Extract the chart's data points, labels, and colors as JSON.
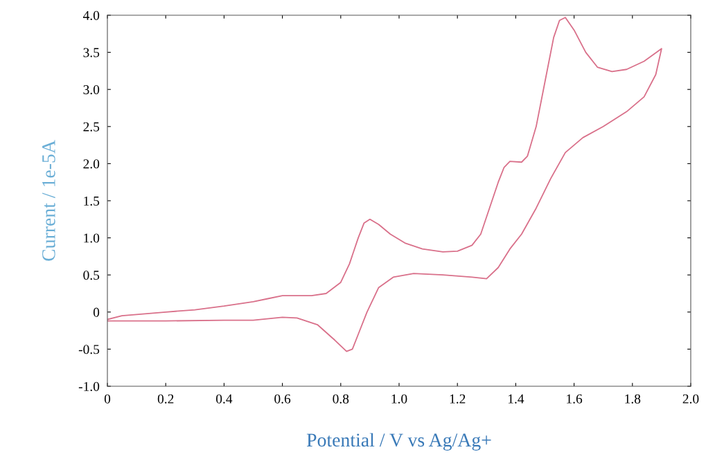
{
  "chart_data": {
    "type": "line",
    "xlabel": "Potential / V vs Ag/Ag+",
    "ylabel": "Current / 1e-5A",
    "xlim": [
      0,
      2.0
    ],
    "ylim": [
      -1.0,
      4.0
    ],
    "xticks": [
      0,
      0.2,
      0.4,
      0.6,
      0.8,
      {
        "value": 1,
        "label": "1.0"
      },
      1.2,
      1.4,
      1.6,
      1.8,
      {
        "value": 2,
        "label": "2.0"
      }
    ],
    "yticks": [
      {
        "value": -1,
        "label": "-1.0"
      },
      -0.5,
      0,
      0.5,
      {
        "value": 1,
        "label": "1.0"
      },
      1.5,
      {
        "value": 2,
        "label": "2.0"
      },
      2.5,
      {
        "value": 3,
        "label": "3.0"
      },
      3.5,
      {
        "value": 4,
        "label": "4.0"
      }
    ],
    "grid": false,
    "marker": "none",
    "line_style": "solid",
    "series": [
      {
        "color": "#d9708a",
        "x": [
          0.0,
          0.05,
          0.2,
          0.3,
          0.4,
          0.5,
          0.55,
          0.6,
          0.65,
          0.7,
          0.75,
          0.8,
          0.83,
          0.86,
          0.88,
          0.9,
          0.93,
          0.97,
          1.02,
          1.08,
          1.15,
          1.2,
          1.25,
          1.28,
          1.31,
          1.34,
          1.36,
          1.38,
          1.42,
          1.44,
          1.47,
          1.5,
          1.53,
          1.55,
          1.57,
          1.6,
          1.64,
          1.68,
          1.73,
          1.78,
          1.84,
          1.9,
          1.88,
          1.84,
          1.78,
          1.7,
          1.63,
          1.57,
          1.52,
          1.47,
          1.42,
          1.38,
          1.34,
          1.3,
          1.25,
          1.15,
          1.05,
          0.98,
          0.93,
          0.89,
          0.86,
          0.84,
          0.82,
          0.78,
          0.72,
          0.65,
          0.6,
          0.5,
          0.4,
          0.2,
          0.0
        ],
        "values": [
          -0.1,
          -0.05,
          0.0,
          0.03,
          0.08,
          0.14,
          0.18,
          0.22,
          0.22,
          0.22,
          0.25,
          0.4,
          0.65,
          1.0,
          1.2,
          1.25,
          1.18,
          1.05,
          0.93,
          0.85,
          0.81,
          0.82,
          0.9,
          1.05,
          1.4,
          1.75,
          1.95,
          2.03,
          2.02,
          2.1,
          2.5,
          3.1,
          3.7,
          3.93,
          3.97,
          3.8,
          3.5,
          3.3,
          3.24,
          3.27,
          3.38,
          3.55,
          3.2,
          2.9,
          2.7,
          2.5,
          2.35,
          2.15,
          1.8,
          1.4,
          1.05,
          0.85,
          0.6,
          0.45,
          0.47,
          0.5,
          0.52,
          0.47,
          0.33,
          0.0,
          -0.3,
          -0.5,
          -0.53,
          -0.38,
          -0.17,
          -0.08,
          -0.07,
          -0.11,
          -0.11,
          -0.12,
          -0.12
        ]
      }
    ]
  }
}
